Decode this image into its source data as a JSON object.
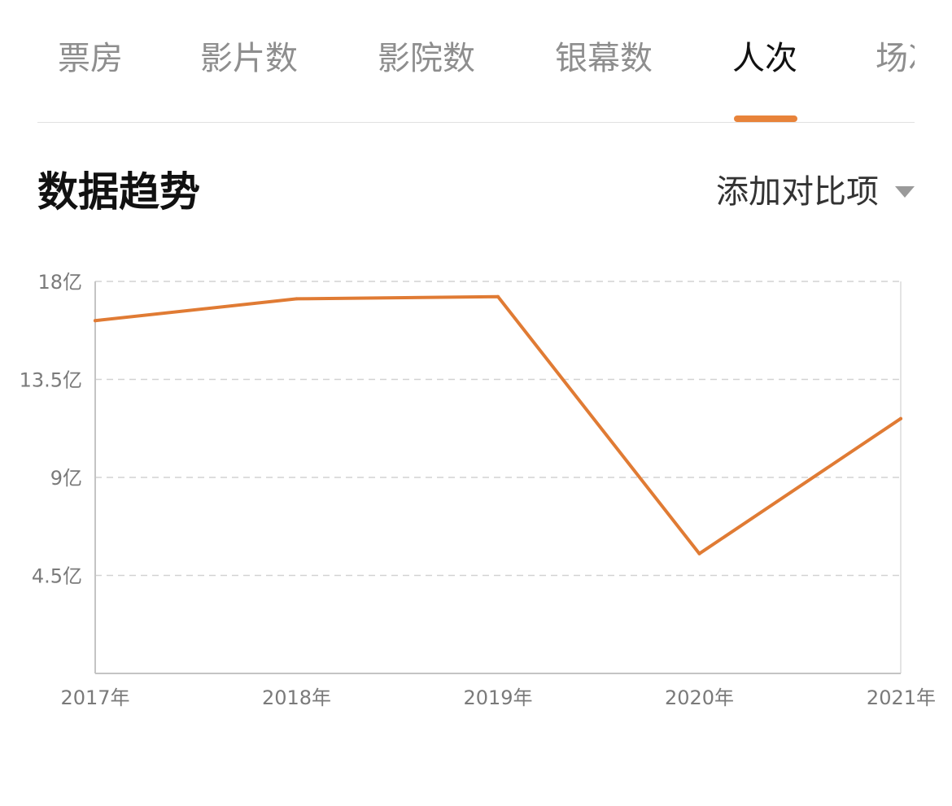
{
  "tabs": [
    {
      "label": "票房"
    },
    {
      "label": "影片数"
    },
    {
      "label": "影院数"
    },
    {
      "label": "银幕数"
    },
    {
      "label": "人次"
    },
    {
      "label": "场次"
    }
  ],
  "active_tab": "人次",
  "section": {
    "title": "数据趋势",
    "compare_label": "添加对比项"
  },
  "colors": {
    "accent": "#e8833a",
    "line": "#e07b34"
  },
  "chart_data": {
    "type": "line",
    "categories": [
      "2017年",
      "2018年",
      "2019年",
      "2020年",
      "2021年"
    ],
    "series": [
      {
        "values": [
          16.2,
          17.2,
          17.3,
          5.5,
          11.7
        ]
      }
    ],
    "ylim": [
      0,
      18
    ],
    "yticks": [
      4.5,
      9,
      13.5,
      18
    ],
    "ytick_labels": [
      "4.5亿",
      "9亿",
      "13.5亿",
      "18亿"
    ],
    "grid": true
  }
}
